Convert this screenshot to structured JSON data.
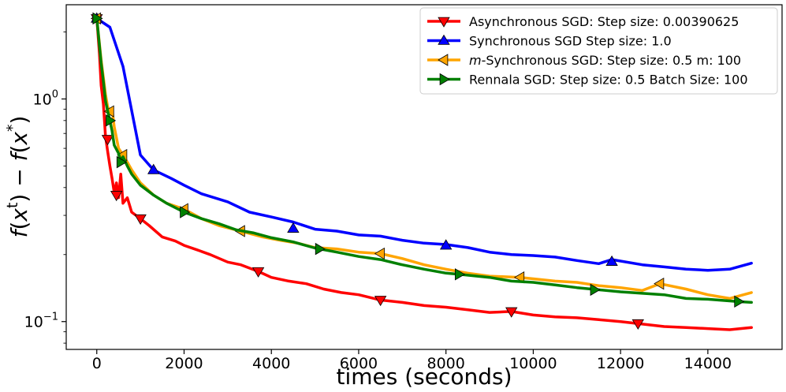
{
  "chart_data": {
    "type": "line",
    "xlabel": "times (seconds)",
    "ylabel": "f(x^t) − f(x^*)",
    "ylog": true,
    "xlim": [
      -700,
      15700
    ],
    "ylim": [
      0.075,
      2.65
    ],
    "xticks": [
      0,
      2000,
      4000,
      6000,
      8000,
      10000,
      12000,
      14000
    ],
    "xtick_labels": [
      "0",
      "2000",
      "4000",
      "6000",
      "8000",
      "10000",
      "12000",
      "14000"
    ],
    "yticks": [
      1.0,
      0.1
    ],
    "ytick_labels": [
      {
        "base": "10",
        "exp": "0"
      },
      {
        "base": "10",
        "exp": "−1"
      }
    ],
    "legend_position": "top-right",
    "grid": false,
    "series": [
      {
        "name": "Asynchronous SGD: Step size: 0.00390625",
        "label_parts": [
          {
            "text": "Asynchronous SGD: Step size: 0.00390625",
            "italic": false
          }
        ],
        "color": "#ff0000",
        "marker": "triangle-down",
        "x": [
          0,
          60,
          100,
          150,
          200,
          250,
          300,
          350,
          400,
          450,
          500,
          550,
          600,
          700,
          800,
          900,
          1000,
          1200,
          1500,
          1800,
          2000,
          2300,
          2600,
          3000,
          3300,
          3700,
          4000,
          4400,
          4800,
          5200,
          5600,
          6000,
          6500,
          7000,
          7500,
          8000,
          8500,
          9000,
          9500,
          10000,
          10500,
          11000,
          11500,
          12000,
          12400,
          13000,
          13500,
          14000,
          14500,
          15000
        ],
        "y": [
          2.3,
          1.6,
          1.15,
          0.95,
          0.68,
          0.58,
          0.5,
          0.44,
          0.38,
          0.42,
          0.36,
          0.46,
          0.34,
          0.36,
          0.31,
          0.3,
          0.29,
          0.27,
          0.24,
          0.23,
          0.22,
          0.21,
          0.2,
          0.185,
          0.18,
          0.168,
          0.158,
          0.152,
          0.148,
          0.14,
          0.135,
          0.132,
          0.125,
          0.122,
          0.118,
          0.116,
          0.113,
          0.11,
          0.111,
          0.107,
          0.105,
          0.104,
          0.102,
          0.1,
          0.098,
          0.095,
          0.094,
          0.093,
          0.092,
          0.094
        ],
        "marker_x": [
          0,
          250,
          450,
          1000,
          3700,
          6500,
          9500,
          12400
        ],
        "marker_y": [
          2.3,
          0.66,
          0.37,
          0.29,
          0.168,
          0.125,
          0.111,
          0.098
        ]
      },
      {
        "name": "Synchronous SGD Step size: 1.0",
        "label_parts": [
          {
            "text": "Synchronous SGD Step size: 1.0",
            "italic": false
          }
        ],
        "color": "#0000ff",
        "marker": "triangle-up",
        "x": [
          0,
          300,
          600,
          1000,
          1300,
          1700,
          2000,
          2400,
          3000,
          3500,
          4000,
          4500,
          5000,
          5500,
          6000,
          6500,
          7000,
          7500,
          8000,
          8500,
          9000,
          9500,
          10000,
          10500,
          11000,
          11500,
          11800,
          12500,
          13000,
          13500,
          14000,
          14500,
          15000
        ],
        "y": [
          2.3,
          2.1,
          1.4,
          0.56,
          0.48,
          0.44,
          0.41,
          0.375,
          0.345,
          0.31,
          0.295,
          0.28,
          0.26,
          0.255,
          0.245,
          0.242,
          0.232,
          0.225,
          0.222,
          0.215,
          0.205,
          0.2,
          0.198,
          0.195,
          0.188,
          0.182,
          0.19,
          0.18,
          0.176,
          0.172,
          0.17,
          0.172,
          0.183
        ],
        "marker_x": [
          0,
          1300,
          4500,
          8000,
          11800
        ],
        "marker_y": [
          2.3,
          0.48,
          0.262,
          0.22,
          0.186
        ]
      },
      {
        "name": "m-Synchronous SGD: Step size: 0.5 m: 100",
        "label_parts": [
          {
            "text": "m",
            "italic": true
          },
          {
            "text": "-Synchronous  SGD: Step size: 0.5 m: 100",
            "italic": false
          }
        ],
        "color": "#ffa500",
        "marker": "triangle-left",
        "x": [
          0,
          100,
          150,
          200,
          250,
          300,
          350,
          400,
          500,
          600,
          700,
          800,
          1000,
          1300,
          1600,
          2000,
          2400,
          2800,
          3300,
          3800,
          4200,
          4600,
          5000,
          5500,
          6000,
          6500,
          7000,
          7500,
          8000,
          8500,
          9000,
          9700,
          10500,
          11000,
          11500,
          12000,
          12500,
          12900,
          13500,
          14000,
          14500,
          15000
        ],
        "y": [
          2.3,
          1.5,
          1.25,
          1.05,
          0.92,
          0.88,
          0.9,
          0.75,
          0.6,
          0.56,
          0.52,
          0.48,
          0.42,
          0.37,
          0.34,
          0.32,
          0.29,
          0.27,
          0.255,
          0.24,
          0.232,
          0.225,
          0.215,
          0.212,
          0.205,
          0.202,
          0.192,
          0.18,
          0.172,
          0.165,
          0.16,
          0.158,
          0.152,
          0.15,
          0.145,
          0.142,
          0.138,
          0.148,
          0.14,
          0.132,
          0.127,
          0.135
        ],
        "marker_x": [
          0,
          300,
          600,
          2000,
          3300,
          6500,
          9700,
          12900
        ],
        "marker_y": [
          2.3,
          0.88,
          0.56,
          0.32,
          0.255,
          0.202,
          0.158,
          0.148
        ]
      },
      {
        "name": "Rennala SGD: Step size: 0.5 Batch Size: 100",
        "label_parts": [
          {
            "text": "Rennala SGD: Step size: 0.5 Batch Size: 100",
            "italic": false
          }
        ],
        "color": "#008000",
        "marker": "triangle-right",
        "x": [
          0,
          100,
          150,
          200,
          250,
          300,
          350,
          400,
          500,
          550,
          600,
          700,
          800,
          1000,
          1300,
          1600,
          2000,
          2400,
          2800,
          3200,
          3600,
          4000,
          4500,
          5000,
          5500,
          6000,
          6500,
          7000,
          7500,
          8000,
          8300,
          9000,
          9500,
          10000,
          10500,
          11000,
          11500,
          12000,
          12500,
          13000,
          13500,
          14000,
          14700,
          15000
        ],
        "y": [
          2.3,
          1.45,
          1.2,
          0.98,
          0.88,
          0.8,
          0.72,
          0.62,
          0.57,
          0.52,
          0.55,
          0.5,
          0.46,
          0.41,
          0.37,
          0.34,
          0.31,
          0.29,
          0.275,
          0.258,
          0.25,
          0.238,
          0.228,
          0.214,
          0.205,
          0.196,
          0.19,
          0.18,
          0.172,
          0.165,
          0.163,
          0.158,
          0.152,
          0.15,
          0.146,
          0.142,
          0.139,
          0.136,
          0.134,
          0.132,
          0.127,
          0.126,
          0.123,
          0.122
        ],
        "marker_x": [
          0,
          300,
          550,
          2000,
          5100,
          8300,
          11400,
          14700
        ],
        "marker_y": [
          2.3,
          0.8,
          0.52,
          0.31,
          0.212,
          0.163,
          0.139,
          0.123
        ]
      }
    ]
  }
}
